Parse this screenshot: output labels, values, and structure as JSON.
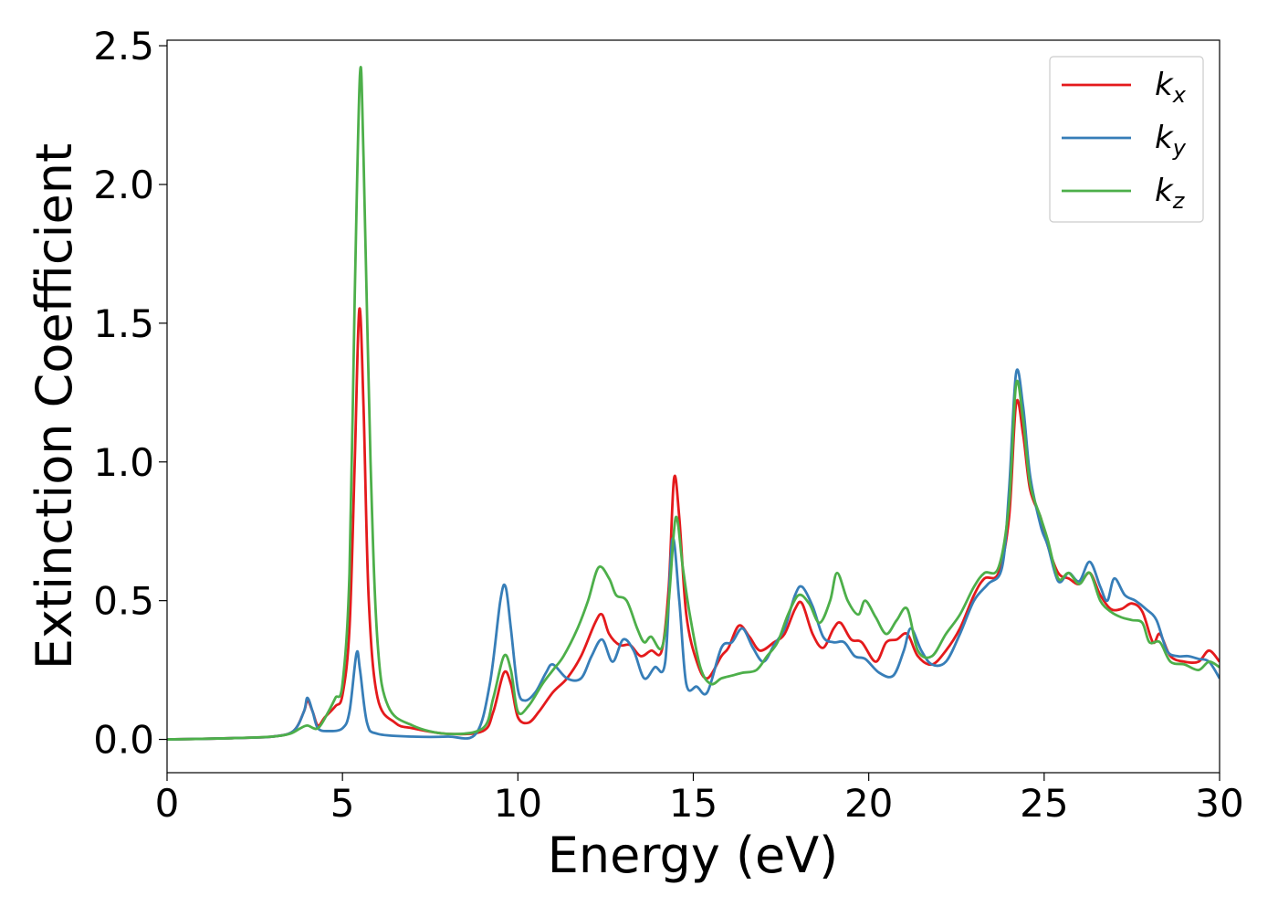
{
  "chart_data": {
    "type": "line",
    "xlabel": "Energy (eV)",
    "ylabel": "Extinction Coefficient",
    "xlim": [
      0,
      30
    ],
    "ylim": [
      -0.12,
      2.52
    ],
    "xticks": [
      0,
      5,
      10,
      15,
      20,
      25,
      30
    ],
    "yticks": [
      0.0,
      0.5,
      1.0,
      1.5,
      2.0,
      2.5
    ],
    "xtick_labels": [
      "0",
      "5",
      "10",
      "15",
      "20",
      "25",
      "30"
    ],
    "ytick_labels": [
      "0.0",
      "0.5",
      "1.0",
      "1.5",
      "2.0",
      "2.5"
    ],
    "grid": false,
    "legend_position": "top-right",
    "series": [
      {
        "name": "k",
        "subscript": "x",
        "color": "#e41a1c",
        "points": [
          [
            0,
            0.0
          ],
          [
            1,
            0.002
          ],
          [
            2,
            0.005
          ],
          [
            3,
            0.01
          ],
          [
            3.6,
            0.03
          ],
          [
            3.9,
            0.1
          ],
          [
            4.0,
            0.14
          ],
          [
            4.15,
            0.1
          ],
          [
            4.3,
            0.05
          ],
          [
            4.5,
            0.08
          ],
          [
            4.8,
            0.12
          ],
          [
            5.0,
            0.16
          ],
          [
            5.2,
            0.4
          ],
          [
            5.35,
            1.0
          ],
          [
            5.48,
            1.55
          ],
          [
            5.6,
            1.2
          ],
          [
            5.75,
            0.5
          ],
          [
            6.0,
            0.15
          ],
          [
            6.5,
            0.06
          ],
          [
            7,
            0.04
          ],
          [
            8,
            0.02
          ],
          [
            9,
            0.03
          ],
          [
            9.3,
            0.1
          ],
          [
            9.6,
            0.24
          ],
          [
            9.8,
            0.2
          ],
          [
            10.0,
            0.08
          ],
          [
            10.3,
            0.06
          ],
          [
            10.6,
            0.1
          ],
          [
            11.0,
            0.17
          ],
          [
            11.4,
            0.22
          ],
          [
            11.8,
            0.3
          ],
          [
            12.2,
            0.42
          ],
          [
            12.4,
            0.45
          ],
          [
            12.6,
            0.38
          ],
          [
            12.9,
            0.34
          ],
          [
            13.2,
            0.34
          ],
          [
            13.5,
            0.3
          ],
          [
            13.8,
            0.32
          ],
          [
            14.1,
            0.32
          ],
          [
            14.3,
            0.55
          ],
          [
            14.45,
            0.94
          ],
          [
            14.6,
            0.8
          ],
          [
            14.8,
            0.45
          ],
          [
            15.1,
            0.28
          ],
          [
            15.4,
            0.22
          ],
          [
            15.8,
            0.3
          ],
          [
            16.0,
            0.33
          ],
          [
            16.3,
            0.41
          ],
          [
            16.6,
            0.37
          ],
          [
            16.9,
            0.32
          ],
          [
            17.3,
            0.35
          ],
          [
            17.6,
            0.38
          ],
          [
            17.9,
            0.47
          ],
          [
            18.1,
            0.49
          ],
          [
            18.4,
            0.38
          ],
          [
            18.7,
            0.33
          ],
          [
            19.0,
            0.4
          ],
          [
            19.2,
            0.42
          ],
          [
            19.5,
            0.36
          ],
          [
            19.8,
            0.35
          ],
          [
            20.2,
            0.28
          ],
          [
            20.5,
            0.35
          ],
          [
            20.8,
            0.36
          ],
          [
            21.1,
            0.38
          ],
          [
            21.4,
            0.3
          ],
          [
            21.8,
            0.27
          ],
          [
            22.2,
            0.32
          ],
          [
            22.6,
            0.4
          ],
          [
            23.0,
            0.52
          ],
          [
            23.3,
            0.58
          ],
          [
            23.7,
            0.6
          ],
          [
            24.0,
            0.8
          ],
          [
            24.2,
            1.21
          ],
          [
            24.4,
            1.1
          ],
          [
            24.6,
            0.9
          ],
          [
            24.9,
            0.8
          ],
          [
            25.1,
            0.7
          ],
          [
            25.4,
            0.6
          ],
          [
            25.7,
            0.58
          ],
          [
            26.0,
            0.56
          ],
          [
            26.3,
            0.6
          ],
          [
            26.6,
            0.52
          ],
          [
            26.9,
            0.47
          ],
          [
            27.2,
            0.47
          ],
          [
            27.5,
            0.49
          ],
          [
            27.8,
            0.46
          ],
          [
            28.1,
            0.35
          ],
          [
            28.3,
            0.38
          ],
          [
            28.6,
            0.3
          ],
          [
            29.0,
            0.28
          ],
          [
            29.4,
            0.28
          ],
          [
            29.7,
            0.32
          ],
          [
            30,
            0.28
          ]
        ]
      },
      {
        "name": "k",
        "subscript": "y",
        "color": "#377eb8",
        "points": [
          [
            0,
            0.0
          ],
          [
            1,
            0.002
          ],
          [
            2,
            0.005
          ],
          [
            3,
            0.01
          ],
          [
            3.6,
            0.03
          ],
          [
            3.9,
            0.1
          ],
          [
            4.0,
            0.15
          ],
          [
            4.15,
            0.1
          ],
          [
            4.3,
            0.04
          ],
          [
            4.6,
            0.03
          ],
          [
            5.0,
            0.04
          ],
          [
            5.2,
            0.1
          ],
          [
            5.4,
            0.31
          ],
          [
            5.5,
            0.25
          ],
          [
            5.7,
            0.06
          ],
          [
            6.0,
            0.02
          ],
          [
            7,
            0.01
          ],
          [
            8,
            0.01
          ],
          [
            8.8,
            0.02
          ],
          [
            9.2,
            0.2
          ],
          [
            9.5,
            0.5
          ],
          [
            9.65,
            0.55
          ],
          [
            9.8,
            0.4
          ],
          [
            10.0,
            0.18
          ],
          [
            10.2,
            0.14
          ],
          [
            10.5,
            0.17
          ],
          [
            10.8,
            0.24
          ],
          [
            11.0,
            0.27
          ],
          [
            11.4,
            0.22
          ],
          [
            11.8,
            0.22
          ],
          [
            12.1,
            0.3
          ],
          [
            12.4,
            0.36
          ],
          [
            12.7,
            0.28
          ],
          [
            13.0,
            0.36
          ],
          [
            13.3,
            0.32
          ],
          [
            13.6,
            0.22
          ],
          [
            13.9,
            0.26
          ],
          [
            14.2,
            0.28
          ],
          [
            14.4,
            0.72
          ],
          [
            14.6,
            0.5
          ],
          [
            14.8,
            0.2
          ],
          [
            15.1,
            0.19
          ],
          [
            15.4,
            0.17
          ],
          [
            15.8,
            0.33
          ],
          [
            16.1,
            0.35
          ],
          [
            16.4,
            0.4
          ],
          [
            16.7,
            0.33
          ],
          [
            17.0,
            0.28
          ],
          [
            17.3,
            0.34
          ],
          [
            17.6,
            0.4
          ],
          [
            17.9,
            0.52
          ],
          [
            18.1,
            0.55
          ],
          [
            18.4,
            0.48
          ],
          [
            18.7,
            0.37
          ],
          [
            19.0,
            0.35
          ],
          [
            19.3,
            0.35
          ],
          [
            19.6,
            0.3
          ],
          [
            19.9,
            0.29
          ],
          [
            20.3,
            0.24
          ],
          [
            20.7,
            0.23
          ],
          [
            21.0,
            0.32
          ],
          [
            21.2,
            0.4
          ],
          [
            21.5,
            0.32
          ],
          [
            21.8,
            0.27
          ],
          [
            22.2,
            0.28
          ],
          [
            22.6,
            0.38
          ],
          [
            23.0,
            0.5
          ],
          [
            23.4,
            0.56
          ],
          [
            23.8,
            0.62
          ],
          [
            24.0,
            0.9
          ],
          [
            24.2,
            1.32
          ],
          [
            24.4,
            1.2
          ],
          [
            24.6,
            0.95
          ],
          [
            24.9,
            0.77
          ],
          [
            25.1,
            0.7
          ],
          [
            25.4,
            0.57
          ],
          [
            25.7,
            0.6
          ],
          [
            26.0,
            0.57
          ],
          [
            26.3,
            0.64
          ],
          [
            26.6,
            0.55
          ],
          [
            26.8,
            0.5
          ],
          [
            27.0,
            0.58
          ],
          [
            27.3,
            0.52
          ],
          [
            27.6,
            0.5
          ],
          [
            27.9,
            0.47
          ],
          [
            28.2,
            0.43
          ],
          [
            28.5,
            0.32
          ],
          [
            28.8,
            0.3
          ],
          [
            29.1,
            0.3
          ],
          [
            29.4,
            0.29
          ],
          [
            29.7,
            0.28
          ],
          [
            30,
            0.22
          ]
        ]
      },
      {
        "name": "k",
        "subscript": "z",
        "color": "#4daf4a",
        "points": [
          [
            0,
            0.0
          ],
          [
            1,
            0.002
          ],
          [
            2,
            0.005
          ],
          [
            3,
            0.01
          ],
          [
            3.5,
            0.02
          ],
          [
            3.8,
            0.04
          ],
          [
            4.0,
            0.05
          ],
          [
            4.3,
            0.04
          ],
          [
            4.6,
            0.1
          ],
          [
            4.8,
            0.15
          ],
          [
            5.0,
            0.2
          ],
          [
            5.2,
            0.6
          ],
          [
            5.35,
            1.6
          ],
          [
            5.5,
            2.4
          ],
          [
            5.6,
            2.1
          ],
          [
            5.8,
            1.0
          ],
          [
            6.0,
            0.35
          ],
          [
            6.3,
            0.12
          ],
          [
            7,
            0.05
          ],
          [
            8,
            0.02
          ],
          [
            9,
            0.04
          ],
          [
            9.3,
            0.15
          ],
          [
            9.6,
            0.3
          ],
          [
            9.8,
            0.25
          ],
          [
            10.0,
            0.1
          ],
          [
            10.3,
            0.12
          ],
          [
            10.7,
            0.2
          ],
          [
            11.0,
            0.25
          ],
          [
            11.3,
            0.3
          ],
          [
            11.7,
            0.4
          ],
          [
            12.0,
            0.5
          ],
          [
            12.3,
            0.62
          ],
          [
            12.6,
            0.58
          ],
          [
            12.8,
            0.52
          ],
          [
            13.1,
            0.5
          ],
          [
            13.4,
            0.4
          ],
          [
            13.6,
            0.35
          ],
          [
            13.8,
            0.37
          ],
          [
            14.1,
            0.33
          ],
          [
            14.3,
            0.5
          ],
          [
            14.5,
            0.8
          ],
          [
            14.7,
            0.62
          ],
          [
            14.9,
            0.45
          ],
          [
            15.2,
            0.26
          ],
          [
            15.5,
            0.2
          ],
          [
            15.8,
            0.22
          ],
          [
            16.1,
            0.23
          ],
          [
            16.4,
            0.24
          ],
          [
            16.8,
            0.25
          ],
          [
            17.1,
            0.3
          ],
          [
            17.4,
            0.35
          ],
          [
            17.7,
            0.45
          ],
          [
            18.0,
            0.52
          ],
          [
            18.3,
            0.49
          ],
          [
            18.6,
            0.42
          ],
          [
            18.9,
            0.5
          ],
          [
            19.1,
            0.6
          ],
          [
            19.4,
            0.5
          ],
          [
            19.7,
            0.45
          ],
          [
            19.9,
            0.5
          ],
          [
            20.2,
            0.44
          ],
          [
            20.5,
            0.38
          ],
          [
            20.8,
            0.43
          ],
          [
            21.1,
            0.47
          ],
          [
            21.4,
            0.32
          ],
          [
            21.8,
            0.3
          ],
          [
            22.2,
            0.38
          ],
          [
            22.6,
            0.45
          ],
          [
            23.0,
            0.55
          ],
          [
            23.3,
            0.6
          ],
          [
            23.7,
            0.62
          ],
          [
            24.0,
            0.85
          ],
          [
            24.2,
            1.28
          ],
          [
            24.4,
            1.15
          ],
          [
            24.6,
            0.92
          ],
          [
            24.9,
            0.8
          ],
          [
            25.1,
            0.72
          ],
          [
            25.4,
            0.58
          ],
          [
            25.7,
            0.6
          ],
          [
            26.0,
            0.56
          ],
          [
            26.3,
            0.6
          ],
          [
            26.6,
            0.5
          ],
          [
            26.9,
            0.46
          ],
          [
            27.2,
            0.44
          ],
          [
            27.5,
            0.43
          ],
          [
            27.8,
            0.42
          ],
          [
            28.0,
            0.35
          ],
          [
            28.3,
            0.35
          ],
          [
            28.6,
            0.28
          ],
          [
            29.0,
            0.27
          ],
          [
            29.4,
            0.25
          ],
          [
            29.7,
            0.28
          ],
          [
            30,
            0.26
          ]
        ]
      }
    ]
  }
}
